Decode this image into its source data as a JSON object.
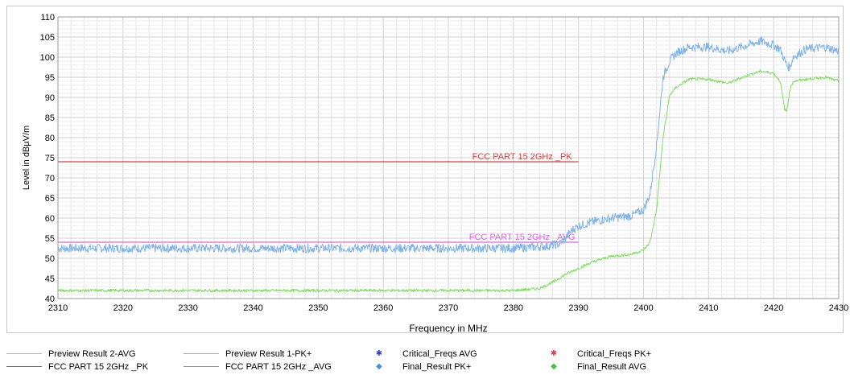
{
  "chart_data": {
    "type": "line",
    "xlabel": "Frequency in MHz",
    "ylabel": "Level in dBµV/m",
    "xlim": [
      2310,
      2430
    ],
    "ylim": [
      40,
      110
    ],
    "xticks": [
      2310,
      2320,
      2330,
      2340,
      2350,
      2360,
      2370,
      2380,
      2390,
      2400,
      2410,
      2420,
      2430
    ],
    "yticks": [
      40,
      45,
      50,
      55,
      60,
      65,
      70,
      75,
      80,
      85,
      90,
      95,
      100,
      105,
      110
    ],
    "grid": true,
    "series": [
      {
        "name": "Preview Result 1-PK+",
        "color": "#82b3e6",
        "x": [
          2310,
          2320,
          2330,
          2340,
          2350,
          2360,
          2370,
          2380,
          2385,
          2387,
          2388,
          2389,
          2390,
          2392,
          2395,
          2398,
          2400,
          2401,
          2402,
          2403,
          2404,
          2405,
          2407,
          2410,
          2413,
          2416,
          2418,
          2420,
          2421,
          2422,
          2422.5,
          2423,
          2425,
          2428,
          2430
        ],
        "y": [
          52.5,
          52.5,
          52.5,
          52.5,
          52.5,
          52.5,
          52.5,
          52.5,
          53,
          53.5,
          55,
          57,
          58,
          59,
          60,
          60.5,
          62,
          66,
          78,
          95,
          99,
          101,
          102.5,
          102.5,
          101.5,
          103,
          104,
          103,
          102,
          98,
          97.5,
          100,
          102,
          102.5,
          101.5
        ]
      },
      {
        "name": "Preview Result 2-AVG",
        "color": "#7be05c",
        "x": [
          2310,
          2320,
          2330,
          2340,
          2350,
          2360,
          2370,
          2380,
          2384,
          2386,
          2388,
          2390,
          2392,
          2395,
          2398,
          2400,
          2401,
          2402,
          2403,
          2404,
          2405,
          2407,
          2410,
          2413,
          2416,
          2418,
          2420,
          2421,
          2421.7,
          2422,
          2422.5,
          2423,
          2425,
          2428,
          2430
        ],
        "y": [
          42,
          42,
          42,
          42,
          42,
          42,
          42,
          42,
          42.5,
          44,
          46,
          47.5,
          49,
          50.5,
          51,
          52,
          54,
          62,
          80,
          90.5,
          92.5,
          94.5,
          94.5,
          93.5,
          95.5,
          96.5,
          96,
          94,
          87,
          86.5,
          92,
          94,
          94.5,
          95,
          94
        ]
      }
    ],
    "limit_lines": [
      {
        "name": "FCC PART 15 2GHz _PK",
        "label": "FCC PART 15 2GHz _PK",
        "color": "#e03c3c",
        "x": [
          2310,
          2390
        ],
        "y": 74
      },
      {
        "name": "FCC PART 15 2GHz _AVG",
        "label": "FCC PART 15 2GHz _AVG",
        "color": "#e060e0",
        "x": [
          2310,
          2390
        ],
        "y": 54
      }
    ],
    "legend": {
      "placement": "bottom",
      "items": [
        {
          "label": "Preview Result 2-AVG",
          "kind": "line",
          "color": "#7be05c"
        },
        {
          "label": "Preview Result 1-PK+",
          "kind": "line",
          "color": "#82b3e6"
        },
        {
          "label": "Critical_Freqs AVG",
          "kind": "star",
          "color": "#2a3fd6",
          "symbol": "✱"
        },
        {
          "label": "Critical_Freqs PK+",
          "kind": "star",
          "color": "#e03c3c",
          "symbol": "✱"
        },
        {
          "label": "FCC PART 15 2GHz _PK",
          "kind": "line",
          "color": "#e03c3c"
        },
        {
          "label": "FCC PART 15 2GHz _AVG",
          "kind": "line",
          "color": "#e060e0"
        },
        {
          "label": "Final_Result PK+",
          "kind": "diamond",
          "color": "#4a90d9",
          "symbol": "◆"
        },
        {
          "label": "Final_Result AVG",
          "kind": "diamond",
          "color": "#3cc43c",
          "symbol": "◆"
        }
      ]
    }
  }
}
